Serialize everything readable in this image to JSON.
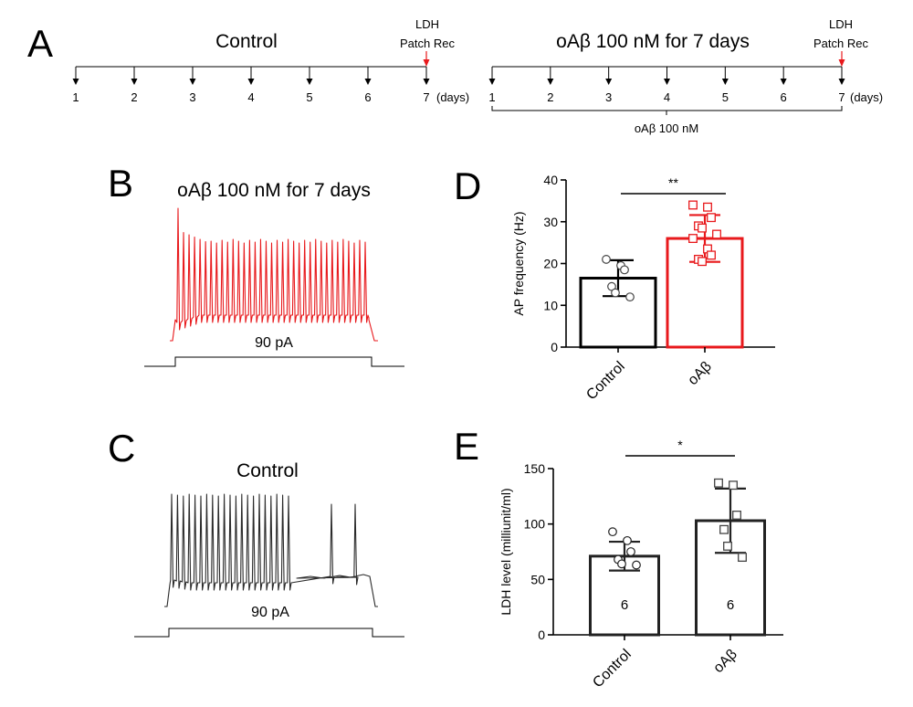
{
  "panels": {
    "A": "A",
    "B": "B",
    "C": "C",
    "D": "D",
    "E": "E"
  },
  "timeline": {
    "control": {
      "title": "Control",
      "marker_line1": "LDH",
      "marker_line2": "Patch Rec",
      "days": [
        "1",
        "2",
        "3",
        "4",
        "5",
        "6",
        "7"
      ],
      "unit": "(days)"
    },
    "treated": {
      "title": "oAβ 100 nM for 7 days",
      "marker_line1": "LDH",
      "marker_line2": "Patch Rec",
      "days": [
        "1",
        "2",
        "3",
        "4",
        "5",
        "6",
        "7"
      ],
      "unit": "(days)",
      "bracket_label": "oAβ 100 nM"
    }
  },
  "traces": {
    "treated": {
      "title": "oAβ 100 nM for 7 days",
      "stim": "90 pA",
      "color": "#e8191c"
    },
    "control": {
      "title": "Control",
      "stim": "90 pA",
      "color": "#2b2b2b"
    }
  },
  "chart_data": [
    {
      "type": "bar",
      "panel": "D",
      "categories": [
        "Control",
        "oAβ"
      ],
      "ylabel": "AP frequency (Hz)",
      "ylim": [
        0,
        40
      ],
      "yticks": [
        0,
        10,
        20,
        30,
        40
      ],
      "means": [
        16.5,
        26.0
      ],
      "sd": [
        4.3,
        5.6
      ],
      "colors": [
        "#000000",
        "#e8191c"
      ],
      "points": [
        [
          21,
          19.5,
          18.5,
          14.5,
          13,
          12
        ],
        [
          34,
          33.5,
          31,
          29,
          28.5,
          27,
          26,
          23.5,
          22,
          21,
          20.5
        ]
      ],
      "significance": "**"
    },
    {
      "type": "bar",
      "panel": "E",
      "categories": [
        "Control",
        "oAβ"
      ],
      "ylabel": "LDH level (milliunit/ml)",
      "ylim": [
        0,
        150
      ],
      "yticks": [
        0,
        50,
        100,
        150
      ],
      "means": [
        71,
        103
      ],
      "sd": [
        13,
        29
      ],
      "colors": [
        "#222222",
        "#222222"
      ],
      "n": [
        "6",
        "6"
      ],
      "points": [
        [
          93,
          85,
          75,
          68,
          64,
          63
        ],
        [
          137,
          135,
          108,
          95,
          80,
          70
        ]
      ],
      "significance": "*"
    }
  ]
}
